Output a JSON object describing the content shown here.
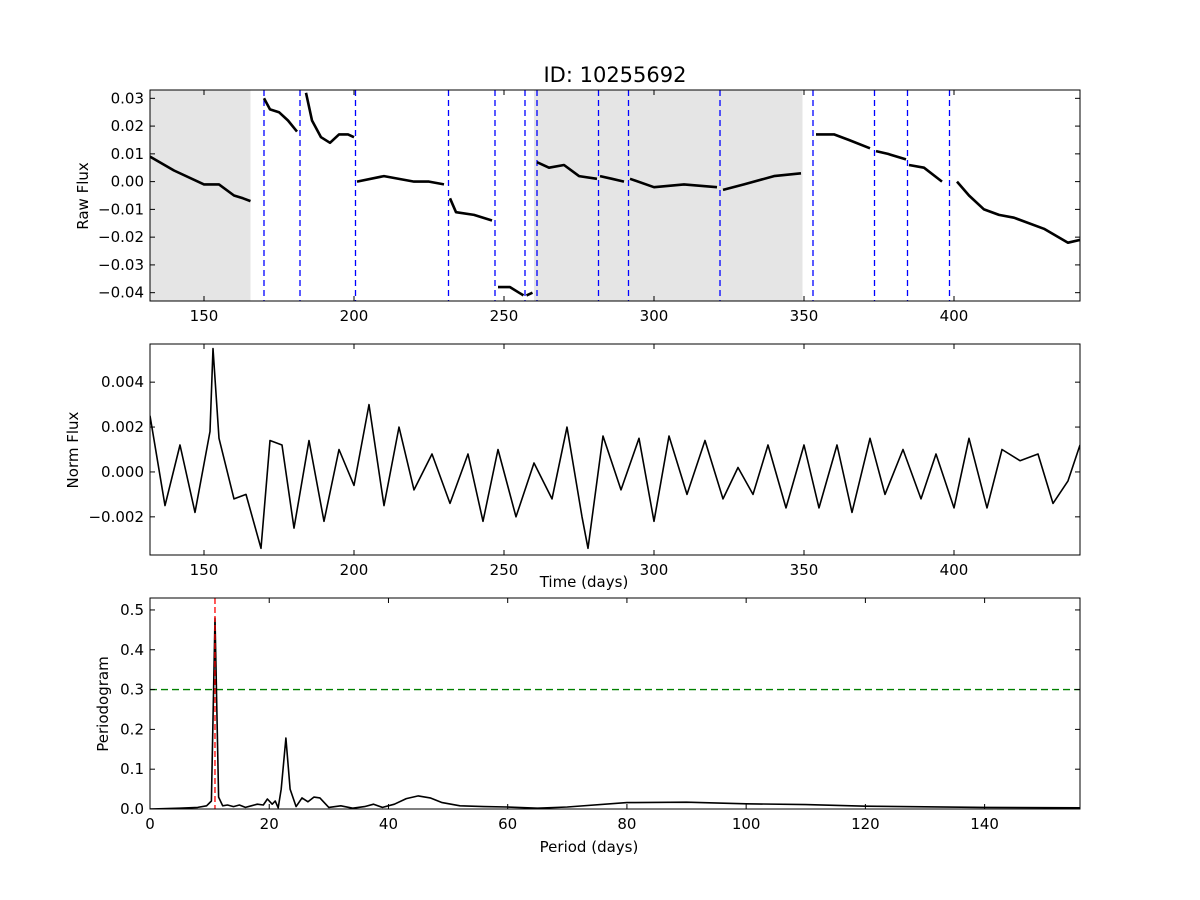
{
  "figure": {
    "title": "ID: 10255692"
  },
  "chart_data": [
    {
      "type": "line",
      "panel": "raw-flux",
      "title": "ID: 10255692",
      "xlabel": "",
      "ylabel": "Raw Flux",
      "xlim": [
        132,
        442
      ],
      "ylim": [
        -0.043,
        0.033
      ],
      "xticks": [
        150,
        200,
        250,
        300,
        350,
        400
      ],
      "yticks": [
        -0.04,
        -0.03,
        -0.02,
        -0.01,
        0.0,
        0.01,
        0.02,
        0.03
      ],
      "ytick_labels": [
        "−0.04",
        "−0.03",
        "−0.02",
        "−0.01",
        "0.00",
        "0.01",
        "0.02",
        "0.03"
      ],
      "shaded_regions": [
        [
          132,
          165.5
        ],
        [
          260,
          349.5
        ]
      ],
      "shade_color": "#e5e5e5",
      "quarter_boundaries": [
        170,
        182,
        200.5,
        231.5,
        247,
        257,
        261,
        281.5,
        291.5,
        322,
        353,
        373.5,
        384.5,
        398.5
      ],
      "boundary_color": "#0000ff",
      "segments": [
        {
          "x": [
            132,
            140,
            150,
            155,
            160,
            163,
            165.5
          ],
          "y": [
            0.009,
            0.004,
            -0.001,
            -0.001,
            -0.005,
            -0.006,
            -0.007
          ]
        },
        {
          "x": [
            170,
            172,
            175,
            178,
            181
          ],
          "y": [
            0.03,
            0.026,
            0.025,
            0.022,
            0.018
          ]
        },
        {
          "x": [
            184,
            186,
            189,
            192,
            195,
            198,
            200
          ],
          "y": [
            0.032,
            0.022,
            0.016,
            0.014,
            0.017,
            0.017,
            0.016
          ]
        },
        {
          "x": [
            201,
            210,
            220,
            225,
            230
          ],
          "y": [
            0.0,
            0.002,
            0.0,
            0.0,
            -0.001
          ]
        },
        {
          "x": [
            232,
            234,
            240,
            246
          ],
          "y": [
            -0.006,
            -0.011,
            -0.012,
            -0.014
          ]
        },
        {
          "x": [
            248,
            252,
            255,
            256.5
          ],
          "y": [
            -0.038,
            -0.038,
            -0.04,
            -0.041
          ]
        },
        {
          "x": [
            257.5,
            259.5
          ],
          "y": [
            -0.041,
            -0.04
          ]
        },
        {
          "x": [
            261,
            265,
            270,
            275,
            281
          ],
          "y": [
            0.007,
            0.005,
            0.006,
            0.002,
            0.001
          ]
        },
        {
          "x": [
            282,
            286,
            290
          ],
          "y": [
            0.002,
            0.001,
            0.0
          ]
        },
        {
          "x": [
            292,
            300,
            310,
            321
          ],
          "y": [
            0.001,
            -0.002,
            -0.001,
            -0.002
          ]
        },
        {
          "x": [
            323,
            330,
            340,
            349
          ],
          "y": [
            -0.003,
            -0.001,
            0.002,
            0.003
          ]
        },
        {
          "x": [
            354,
            360,
            365,
            372
          ],
          "y": [
            0.017,
            0.017,
            0.015,
            0.012
          ]
        },
        {
          "x": [
            374,
            378,
            384
          ],
          "y": [
            0.011,
            0.01,
            0.008
          ]
        },
        {
          "x": [
            385,
            390,
            396
          ],
          "y": [
            0.006,
            0.005,
            0.0
          ]
        },
        {
          "x": [
            401,
            405,
            410,
            415,
            420,
            430,
            438,
            442
          ],
          "y": [
            0.0,
            -0.005,
            -0.01,
            -0.012,
            -0.013,
            -0.017,
            -0.022,
            -0.021
          ]
        }
      ]
    },
    {
      "type": "line",
      "panel": "norm-flux",
      "xlabel": "Time (days)",
      "ylabel": "Norm Flux",
      "xlim": [
        132,
        442
      ],
      "ylim": [
        -0.0037,
        0.0057
      ],
      "xticks": [
        150,
        200,
        250,
        300,
        350,
        400
      ],
      "yticks": [
        -0.002,
        0.0,
        0.002,
        0.004
      ],
      "ytick_labels": [
        "−0.002",
        "0.000",
        "0.002",
        "0.004"
      ],
      "x": [
        132,
        137,
        142,
        147,
        152,
        153,
        155,
        160,
        164,
        169,
        172,
        176,
        180,
        185,
        190,
        195,
        200,
        205,
        210,
        215,
        220,
        226,
        232,
        238,
        243,
        248,
        254,
        260,
        266,
        271,
        276,
        278,
        283,
        289,
        295,
        300,
        305,
        311,
        317,
        323,
        328,
        333,
        338,
        344,
        350,
        355,
        361,
        366,
        372,
        377,
        383,
        389,
        394,
        400,
        405,
        411,
        416,
        422,
        428,
        433,
        438,
        442
      ],
      "y": [
        0.0025,
        -0.0015,
        0.0012,
        -0.0018,
        0.0018,
        0.0055,
        0.0015,
        -0.0012,
        -0.001,
        -0.0034,
        0.0014,
        0.0012,
        -0.0025,
        0.0014,
        -0.0022,
        0.001,
        -0.0006,
        0.003,
        -0.0015,
        0.002,
        -0.0008,
        0.0008,
        -0.0014,
        0.0008,
        -0.0022,
        0.001,
        -0.002,
        0.0004,
        -0.0012,
        0.002,
        -0.002,
        -0.0034,
        0.0016,
        -0.0008,
        0.0015,
        -0.0022,
        0.0016,
        -0.001,
        0.0014,
        -0.0012,
        0.0002,
        -0.001,
        0.0012,
        -0.0016,
        0.0012,
        -0.0016,
        0.0012,
        -0.0018,
        0.0015,
        -0.001,
        0.001,
        -0.0012,
        0.0008,
        -0.0016,
        0.0015,
        -0.0016,
        0.001,
        0.0005,
        0.0008,
        -0.0014,
        -0.0004,
        0.0012
      ]
    },
    {
      "type": "line",
      "panel": "periodogram",
      "xlabel": "Period (days)",
      "ylabel": "Periodogram",
      "xlim": [
        0,
        156
      ],
      "ylim": [
        0,
        0.53
      ],
      "xticks": [
        0,
        20,
        40,
        60,
        80,
        100,
        120,
        140
      ],
      "yticks": [
        0.0,
        0.1,
        0.2,
        0.3,
        0.4,
        0.5
      ],
      "ytick_labels": [
        "0.0",
        "0.1",
        "0.2",
        "0.3",
        "0.4",
        "0.5"
      ],
      "threshold": 0.3,
      "threshold_color": "#008000",
      "peak_period": 10.9,
      "peak_color": "#ff0000",
      "x": [
        0,
        5,
        8,
        9.5,
        10.3,
        10.9,
        11.5,
        12.2,
        13,
        14,
        15,
        16,
        17,
        18,
        19,
        19.7,
        20.5,
        21,
        21.5,
        22,
        22.8,
        23.5,
        24.5,
        25.5,
        26.5,
        27.5,
        28.5,
        30,
        32,
        34,
        36,
        37.5,
        39,
        41,
        43,
        45,
        47,
        49,
        52,
        56,
        60,
        65,
        70,
        80,
        90,
        100,
        110,
        120,
        140,
        156
      ],
      "y": [
        0,
        0.002,
        0.004,
        0.008,
        0.02,
        0.48,
        0.03,
        0.008,
        0.01,
        0.006,
        0.01,
        0.004,
        0.008,
        0.012,
        0.01,
        0.025,
        0.012,
        0.02,
        0.003,
        0.05,
        0.178,
        0.05,
        0.006,
        0.028,
        0.018,
        0.03,
        0.028,
        0.004,
        0.008,
        0.002,
        0.006,
        0.012,
        0.004,
        0.012,
        0.026,
        0.033,
        0.028,
        0.016,
        0.008,
        0.006,
        0.005,
        0.002,
        0.005,
        0.016,
        0.017,
        0.013,
        0.011,
        0.007,
        0.004,
        0.003
      ]
    }
  ]
}
